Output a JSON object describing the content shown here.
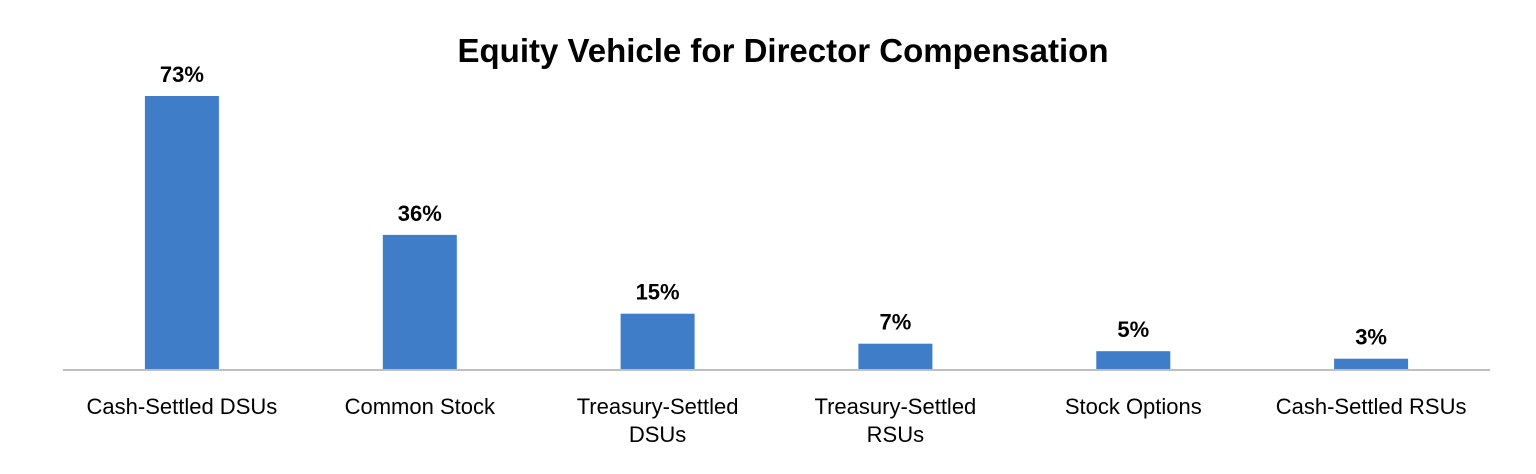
{
  "chart_data": {
    "type": "bar",
    "title": "Equity Vehicle for Director Compensation",
    "categories": [
      "Cash-Settled DSUs",
      "Common Stock",
      "Treasury-Settled DSUs",
      "Treasury-Settled RSUs",
      "Stock Options",
      "Cash-Settled RSUs"
    ],
    "category_lines": [
      [
        "Cash-Settled DSUs"
      ],
      [
        "Common Stock"
      ],
      [
        "Treasury-Settled",
        "DSUs"
      ],
      [
        "Treasury-Settled",
        "RSUs"
      ],
      [
        "Stock Options"
      ],
      [
        "Cash-Settled RSUs"
      ]
    ],
    "values": [
      73,
      36,
      15,
      7,
      5,
      3
    ],
    "data_labels": [
      "73%",
      "36%",
      "15%",
      "7%",
      "5%",
      "3%"
    ],
    "ylim": [
      0,
      73
    ],
    "xlabel": "",
    "ylabel": "",
    "grid": false,
    "legend": "none",
    "colors": {
      "bar": "#3F7DC9",
      "axis": "#BFBFBF"
    }
  }
}
